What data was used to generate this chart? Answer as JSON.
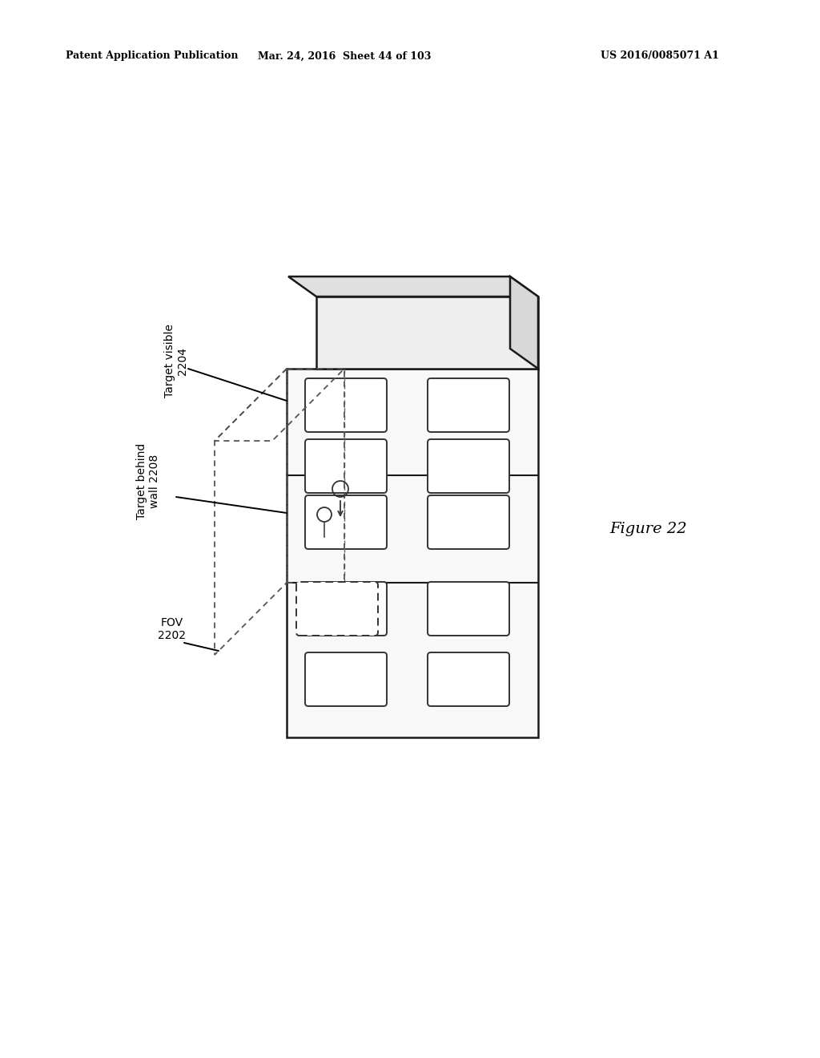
{
  "bg_color": "#ffffff",
  "header_left": "Patent Application Publication",
  "header_mid": "Mar. 24, 2016  Sheet 44 of 103",
  "header_right": "US 2016/0085071 A1",
  "figure_label": "Figure 22",
  "label_target_visible": "Target visible\n2204",
  "label_target_behind": "Target behind\nwall 2208",
  "label_fov": "FOV\n2202",
  "ec_building": "#1a1a1a",
  "ec_window": "#333333",
  "fc_building": "#f5f5f5",
  "fc_window": "#ffffff",
  "dashed_color": "#555555",
  "lw_building": 1.8,
  "lw_window": 1.4,
  "lw_fov": 1.3
}
